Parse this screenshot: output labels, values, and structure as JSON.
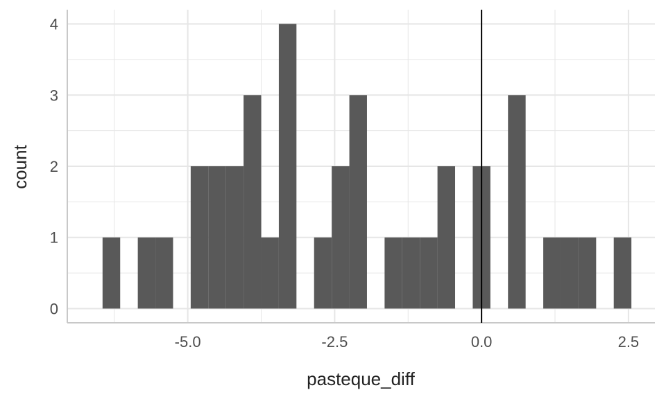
{
  "chart_data": {
    "type": "bar",
    "xlabel": "pasteque_diff",
    "ylabel": "count",
    "xlim": [
      -7.05,
      2.95
    ],
    "ylim": [
      -0.2,
      4.2
    ],
    "x_ticks": [
      -5.0,
      -2.5,
      0.0,
      2.5
    ],
    "x_tick_labels": [
      "-5.0",
      "-2.5",
      "0.0",
      "2.5"
    ],
    "y_ticks": [
      0,
      1,
      2,
      3,
      4
    ],
    "y_tick_labels": [
      "0",
      "1",
      "2",
      "3",
      "4"
    ],
    "bin_width": 0.3,
    "bin_centers": [
      -6.3,
      -6.0,
      -5.7,
      -5.4,
      -5.1,
      -4.8,
      -4.5,
      -4.2,
      -3.9,
      -3.6,
      -3.3,
      -3.0,
      -2.7,
      -2.4,
      -2.1,
      -1.8,
      -1.5,
      -1.2,
      -0.9,
      -0.6,
      -0.3,
      0.0,
      0.3,
      0.6,
      0.9,
      1.2,
      1.5,
      1.8,
      2.1,
      2.4
    ],
    "values": [
      1,
      0,
      1,
      1,
      0,
      2,
      2,
      2,
      3,
      1,
      4,
      0,
      1,
      2,
      3,
      0,
      1,
      1,
      1,
      2,
      0,
      2,
      0,
      3,
      0,
      1,
      1,
      1,
      0,
      1
    ],
    "vline_x": 0.0,
    "bar_color": "#595959",
    "grid": true,
    "grid_color": "#e6e6e6"
  }
}
